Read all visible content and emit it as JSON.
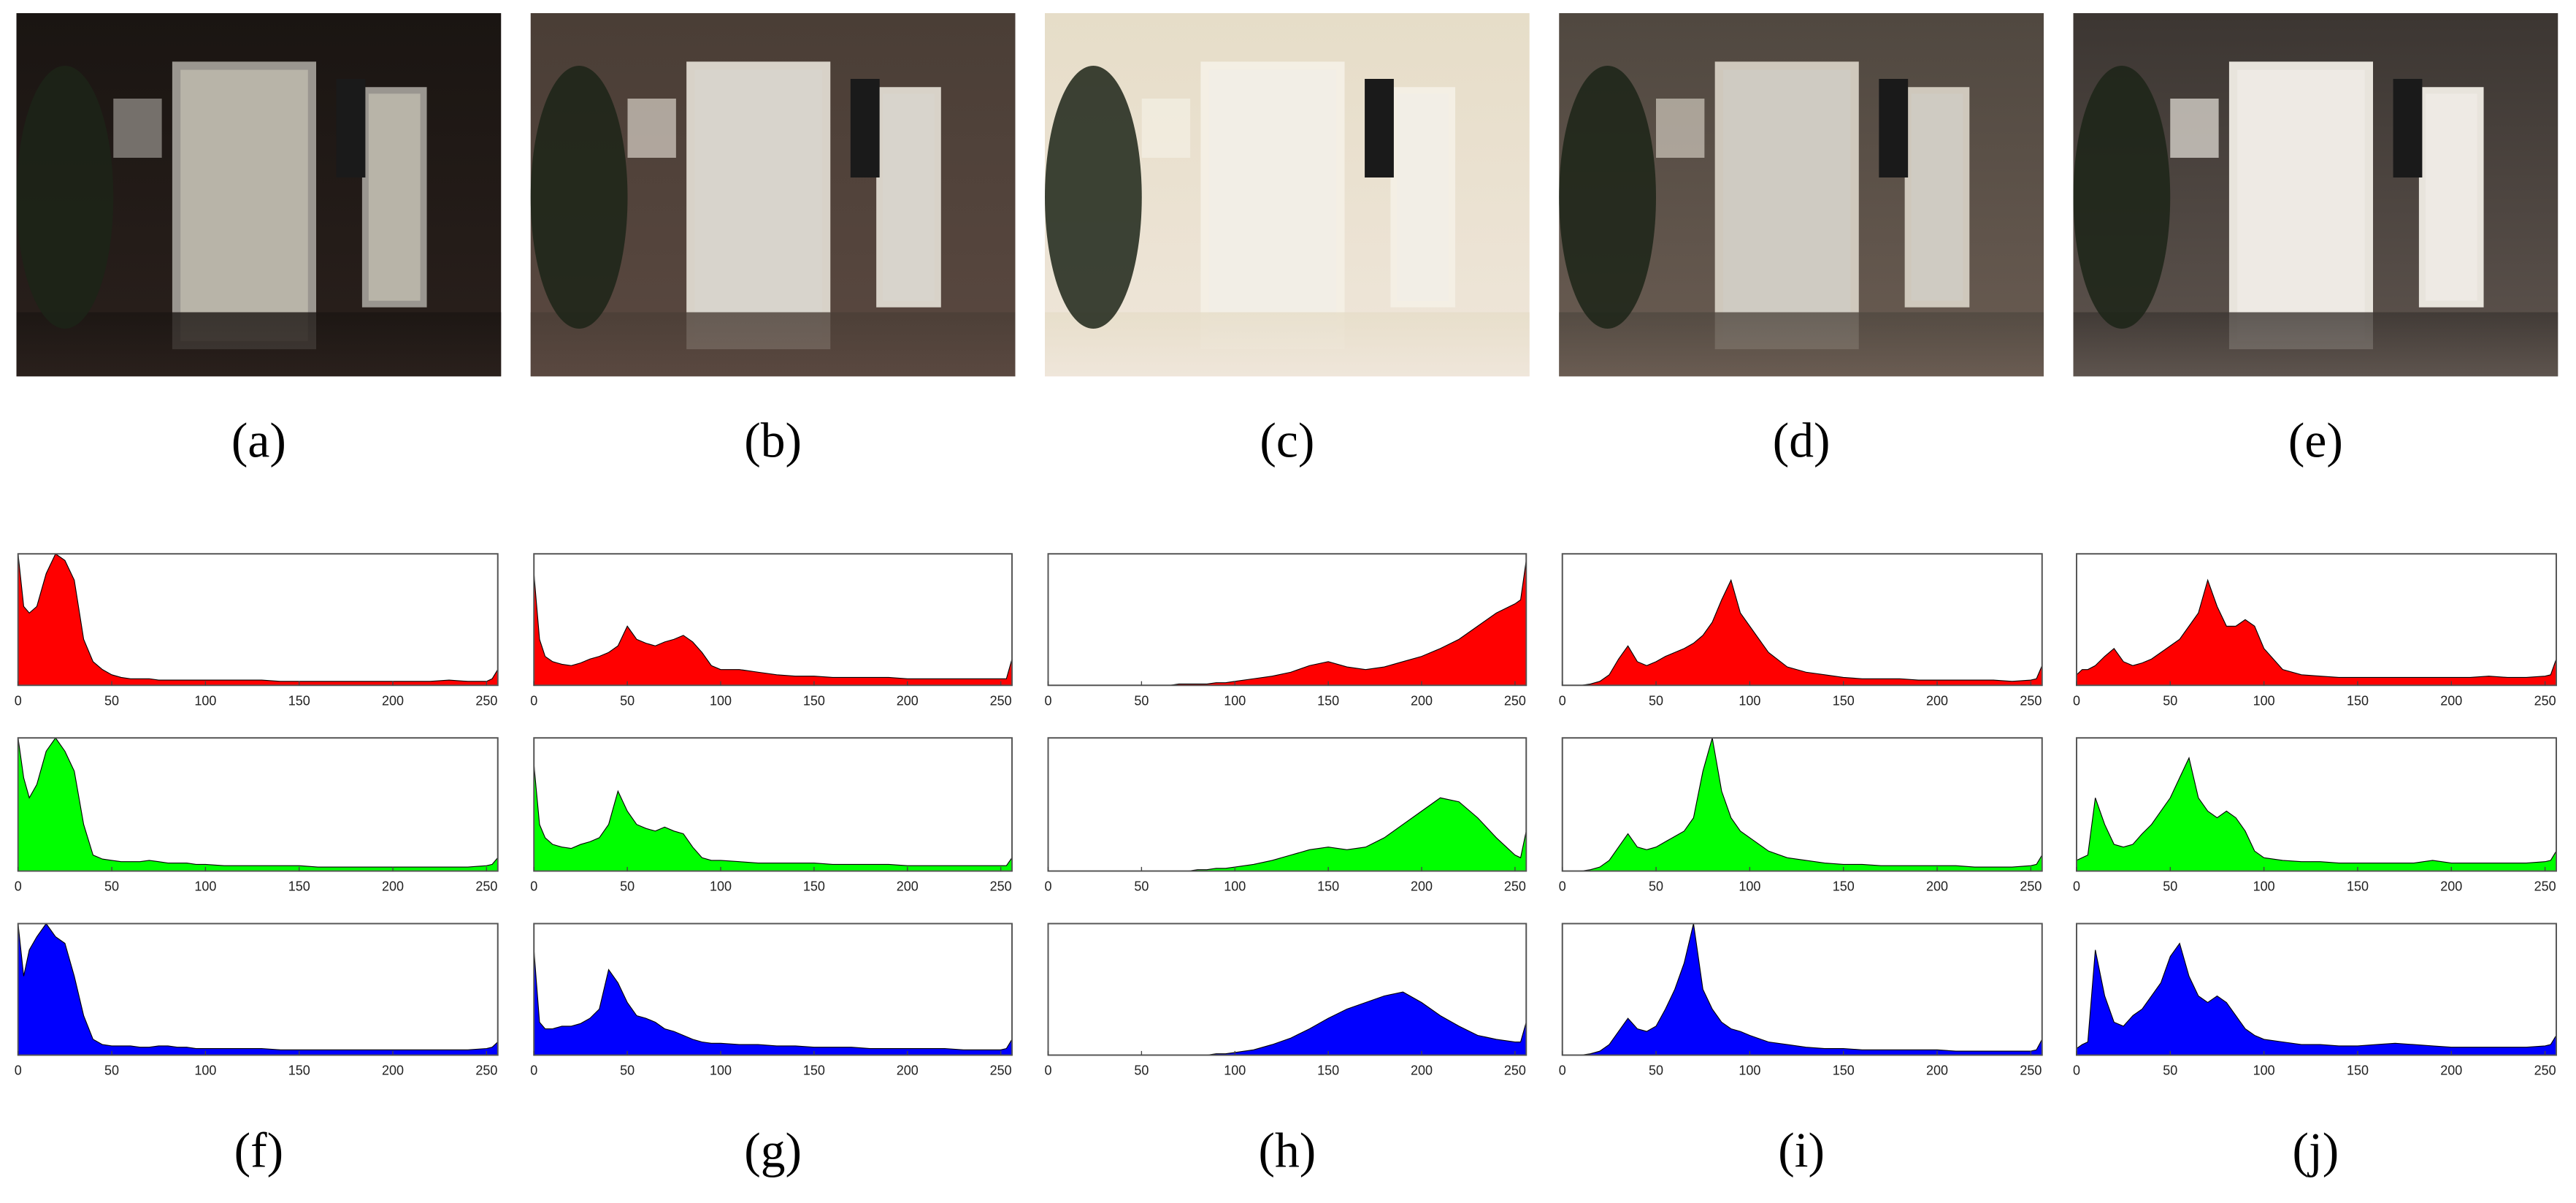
{
  "image_labels": [
    "(a)",
    "(b)",
    "(c)",
    "(d)",
    "(e)"
  ],
  "histogram_labels": [
    "(f)",
    "(g)",
    "(h)",
    "(i)",
    "(j)"
  ],
  "chart_data": [
    {
      "type": "area",
      "color": "#ff0000",
      "xlim": [
        0,
        256
      ],
      "ylim": [
        0,
        100
      ],
      "xticks": [
        0,
        50,
        100,
        150,
        200,
        250
      ],
      "x": [
        0,
        3,
        6,
        10,
        15,
        20,
        25,
        30,
        35,
        40,
        45,
        50,
        55,
        60,
        65,
        70,
        75,
        80,
        85,
        90,
        95,
        100,
        110,
        120,
        130,
        140,
        150,
        160,
        170,
        180,
        190,
        200,
        210,
        220,
        230,
        240,
        250,
        253,
        256
      ],
      "values": [
        100,
        60,
        55,
        60,
        85,
        100,
        95,
        80,
        35,
        18,
        12,
        8,
        6,
        5,
        5,
        5,
        4,
        4,
        4,
        4,
        4,
        4,
        4,
        4,
        4,
        3,
        3,
        3,
        3,
        3,
        3,
        3,
        3,
        3,
        4,
        3,
        3,
        5,
        12
      ]
    },
    {
      "type": "area",
      "color": "#00ff00",
      "xlim": [
        0,
        256
      ],
      "ylim": [
        0,
        100
      ],
      "xticks": [
        0,
        50,
        100,
        150,
        200,
        250
      ],
      "x": [
        0,
        3,
        6,
        10,
        15,
        20,
        25,
        30,
        35,
        40,
        45,
        50,
        55,
        60,
        65,
        70,
        75,
        80,
        85,
        90,
        95,
        100,
        110,
        120,
        130,
        140,
        150,
        160,
        170,
        180,
        190,
        200,
        210,
        220,
        230,
        240,
        250,
        253,
        256
      ],
      "values": [
        100,
        70,
        55,
        65,
        90,
        100,
        90,
        75,
        35,
        12,
        9,
        8,
        7,
        7,
        7,
        8,
        7,
        6,
        6,
        6,
        5,
        5,
        4,
        4,
        4,
        4,
        4,
        3,
        3,
        3,
        3,
        3,
        3,
        3,
        3,
        3,
        4,
        5,
        10
      ]
    },
    {
      "type": "area",
      "color": "#0000ff",
      "xlim": [
        0,
        256
      ],
      "ylim": [
        0,
        100
      ],
      "xticks": [
        0,
        50,
        100,
        150,
        200,
        250
      ],
      "x": [
        0,
        3,
        6,
        10,
        15,
        20,
        25,
        30,
        35,
        40,
        45,
        50,
        55,
        60,
        65,
        70,
        75,
        80,
        85,
        90,
        95,
        100,
        110,
        120,
        130,
        140,
        150,
        160,
        170,
        180,
        190,
        200,
        210,
        220,
        230,
        240,
        250,
        253,
        256
      ],
      "values": [
        100,
        60,
        80,
        90,
        100,
        90,
        85,
        60,
        30,
        12,
        8,
        7,
        7,
        7,
        6,
        6,
        7,
        7,
        6,
        6,
        5,
        5,
        5,
        5,
        5,
        4,
        4,
        4,
        4,
        4,
        4,
        4,
        4,
        4,
        4,
        4,
        5,
        6,
        10
      ]
    },
    {
      "type": "area",
      "color": "#ff0000",
      "xlim": [
        0,
        256
      ],
      "ylim": [
        0,
        100
      ],
      "xticks": [
        0,
        50,
        100,
        150,
        200,
        250
      ],
      "x": [
        0,
        3,
        6,
        10,
        15,
        20,
        25,
        30,
        35,
        40,
        45,
        50,
        55,
        60,
        65,
        70,
        75,
        80,
        85,
        90,
        95,
        100,
        110,
        120,
        130,
        140,
        150,
        160,
        170,
        180,
        190,
        200,
        210,
        220,
        230,
        240,
        250,
        253,
        256
      ],
      "values": [
        85,
        35,
        22,
        18,
        16,
        15,
        17,
        20,
        22,
        25,
        30,
        45,
        35,
        32,
        30,
        33,
        35,
        38,
        33,
        25,
        15,
        12,
        12,
        10,
        8,
        7,
        7,
        6,
        6,
        6,
        6,
        5,
        5,
        5,
        5,
        5,
        5,
        5,
        20
      ]
    },
    {
      "type": "area",
      "color": "#00ff00",
      "xlim": [
        0,
        256
      ],
      "ylim": [
        0,
        100
      ],
      "xticks": [
        0,
        50,
        100,
        150,
        200,
        250
      ],
      "x": [
        0,
        3,
        6,
        10,
        15,
        20,
        25,
        30,
        35,
        40,
        45,
        50,
        55,
        60,
        65,
        70,
        75,
        80,
        85,
        90,
        95,
        100,
        110,
        120,
        130,
        140,
        150,
        160,
        170,
        180,
        190,
        200,
        210,
        220,
        230,
        240,
        250,
        253,
        256
      ],
      "values": [
        80,
        35,
        25,
        20,
        18,
        17,
        20,
        22,
        25,
        35,
        60,
        45,
        35,
        32,
        30,
        33,
        30,
        28,
        18,
        10,
        8,
        8,
        7,
        6,
        6,
        6,
        6,
        5,
        5,
        5,
        5,
        4,
        4,
        4,
        4,
        4,
        4,
        4,
        10
      ]
    },
    {
      "type": "area",
      "color": "#0000ff",
      "xlim": [
        0,
        256
      ],
      "ylim": [
        0,
        100
      ],
      "xticks": [
        0,
        50,
        100,
        150,
        200,
        250
      ],
      "x": [
        0,
        3,
        6,
        10,
        15,
        20,
        25,
        30,
        35,
        40,
        45,
        50,
        55,
        60,
        65,
        70,
        75,
        80,
        85,
        90,
        95,
        100,
        110,
        120,
        130,
        140,
        150,
        160,
        170,
        180,
        190,
        200,
        210,
        220,
        230,
        240,
        250,
        253,
        256
      ],
      "values": [
        80,
        25,
        20,
        20,
        22,
        22,
        24,
        28,
        35,
        65,
        55,
        40,
        30,
        28,
        25,
        20,
        18,
        15,
        12,
        10,
        9,
        9,
        8,
        8,
        7,
        7,
        6,
        6,
        6,
        5,
        5,
        5,
        5,
        5,
        4,
        4,
        4,
        5,
        12
      ]
    },
    {
      "type": "area",
      "color": "#ff0000",
      "xlim": [
        0,
        256
      ],
      "ylim": [
        0,
        100
      ],
      "xticks": [
        0,
        50,
        100,
        150,
        200,
        250
      ],
      "x": [
        0,
        3,
        6,
        10,
        15,
        20,
        25,
        30,
        35,
        40,
        45,
        50,
        55,
        60,
        65,
        70,
        75,
        80,
        85,
        90,
        95,
        100,
        110,
        120,
        130,
        140,
        150,
        160,
        170,
        180,
        190,
        200,
        210,
        220,
        230,
        240,
        250,
        253,
        256
      ],
      "values": [
        0,
        0,
        0,
        0,
        0,
        0,
        0,
        0,
        0,
        0,
        0,
        0,
        0,
        0,
        0,
        1,
        1,
        1,
        1,
        2,
        2,
        3,
        5,
        7,
        10,
        15,
        18,
        14,
        12,
        14,
        18,
        22,
        28,
        35,
        45,
        55,
        62,
        65,
        95
      ]
    },
    {
      "type": "area",
      "color": "#00ff00",
      "xlim": [
        0,
        256
      ],
      "ylim": [
        0,
        100
      ],
      "xticks": [
        0,
        50,
        100,
        150,
        200,
        250
      ],
      "x": [
        0,
        3,
        6,
        10,
        15,
        20,
        25,
        30,
        35,
        40,
        45,
        50,
        55,
        60,
        65,
        70,
        75,
        80,
        85,
        90,
        95,
        100,
        110,
        120,
        130,
        140,
        150,
        160,
        170,
        180,
        190,
        200,
        210,
        220,
        230,
        240,
        250,
        253,
        256
      ],
      "values": [
        0,
        0,
        0,
        0,
        0,
        0,
        0,
        0,
        0,
        0,
        0,
        0,
        0,
        0,
        0,
        0,
        0,
        1,
        1,
        2,
        2,
        3,
        5,
        8,
        12,
        16,
        18,
        16,
        18,
        25,
        35,
        45,
        55,
        52,
        40,
        25,
        12,
        10,
        30
      ]
    },
    {
      "type": "area",
      "color": "#0000ff",
      "xlim": [
        0,
        256
      ],
      "ylim": [
        0,
        100
      ],
      "xticks": [
        0,
        50,
        100,
        150,
        200,
        250
      ],
      "x": [
        0,
        3,
        6,
        10,
        15,
        20,
        25,
        30,
        35,
        40,
        45,
        50,
        55,
        60,
        65,
        70,
        75,
        80,
        85,
        90,
        95,
        100,
        110,
        120,
        130,
        140,
        150,
        160,
        170,
        180,
        190,
        200,
        210,
        220,
        230,
        240,
        250,
        253,
        256
      ],
      "values": [
        0,
        0,
        0,
        0,
        0,
        0,
        0,
        0,
        0,
        0,
        0,
        0,
        0,
        0,
        0,
        0,
        0,
        0,
        0,
        1,
        1,
        2,
        4,
        8,
        13,
        20,
        28,
        35,
        40,
        45,
        48,
        40,
        30,
        22,
        15,
        12,
        10,
        10,
        25
      ]
    },
    {
      "type": "area",
      "color": "#ff0000",
      "xlim": [
        0,
        256
      ],
      "ylim": [
        0,
        100
      ],
      "xticks": [
        0,
        50,
        100,
        150,
        200,
        250
      ],
      "x": [
        0,
        3,
        6,
        10,
        15,
        20,
        25,
        30,
        35,
        40,
        45,
        50,
        55,
        60,
        65,
        70,
        75,
        80,
        85,
        90,
        95,
        100,
        110,
        120,
        130,
        140,
        150,
        160,
        170,
        180,
        190,
        200,
        210,
        220,
        230,
        240,
        250,
        253,
        256
      ],
      "values": [
        0,
        0,
        0,
        0,
        1,
        3,
        8,
        20,
        30,
        18,
        15,
        18,
        22,
        25,
        28,
        32,
        38,
        48,
        65,
        80,
        55,
        45,
        25,
        14,
        10,
        8,
        6,
        5,
        5,
        5,
        4,
        4,
        4,
        4,
        4,
        3,
        4,
        5,
        15
      ]
    },
    {
      "type": "area",
      "color": "#00ff00",
      "xlim": [
        0,
        256
      ],
      "ylim": [
        0,
        100
      ],
      "xticks": [
        0,
        50,
        100,
        150,
        200,
        250
      ],
      "x": [
        0,
        3,
        6,
        10,
        15,
        20,
        25,
        30,
        35,
        40,
        45,
        50,
        55,
        60,
        65,
        70,
        75,
        80,
        85,
        90,
        95,
        100,
        110,
        120,
        130,
        140,
        150,
        160,
        170,
        180,
        190,
        200,
        210,
        220,
        230,
        240,
        250,
        253,
        256
      ],
      "values": [
        0,
        0,
        0,
        0,
        1,
        3,
        8,
        18,
        28,
        18,
        16,
        18,
        22,
        26,
        30,
        40,
        75,
        100,
        60,
        40,
        30,
        25,
        15,
        10,
        8,
        6,
        5,
        5,
        4,
        4,
        4,
        4,
        4,
        3,
        3,
        3,
        4,
        5,
        12
      ]
    },
    {
      "type": "area",
      "color": "#0000ff",
      "xlim": [
        0,
        256
      ],
      "ylim": [
        0,
        100
      ],
      "xticks": [
        0,
        50,
        100,
        150,
        200,
        250
      ],
      "x": [
        0,
        3,
        6,
        10,
        15,
        20,
        25,
        30,
        35,
        40,
        45,
        50,
        55,
        60,
        65,
        70,
        75,
        80,
        85,
        90,
        95,
        100,
        110,
        120,
        130,
        140,
        150,
        160,
        170,
        180,
        190,
        200,
        210,
        220,
        230,
        240,
        250,
        253,
        256
      ],
      "values": [
        0,
        0,
        0,
        0,
        1,
        3,
        8,
        18,
        28,
        20,
        18,
        22,
        35,
        50,
        70,
        100,
        50,
        35,
        25,
        20,
        18,
        15,
        10,
        8,
        6,
        5,
        5,
        4,
        4,
        4,
        4,
        4,
        3,
        3,
        3,
        3,
        3,
        4,
        12
      ]
    },
    {
      "type": "area",
      "color": "#ff0000",
      "xlim": [
        0,
        256
      ],
      "ylim": [
        0,
        100
      ],
      "xticks": [
        0,
        50,
        100,
        150,
        200,
        250
      ],
      "x": [
        0,
        3,
        6,
        10,
        15,
        20,
        25,
        30,
        35,
        40,
        45,
        50,
        55,
        60,
        65,
        70,
        75,
        80,
        85,
        90,
        95,
        100,
        110,
        120,
        130,
        140,
        150,
        160,
        170,
        180,
        190,
        200,
        210,
        220,
        230,
        240,
        250,
        253,
        256
      ],
      "values": [
        8,
        12,
        12,
        15,
        22,
        28,
        18,
        15,
        17,
        20,
        25,
        30,
        35,
        45,
        55,
        80,
        60,
        45,
        45,
        50,
        45,
        28,
        12,
        8,
        7,
        6,
        6,
        6,
        6,
        6,
        6,
        6,
        6,
        7,
        6,
        6,
        7,
        8,
        20
      ]
    },
    {
      "type": "area",
      "color": "#00ff00",
      "xlim": [
        0,
        256
      ],
      "ylim": [
        0,
        100
      ],
      "xticks": [
        0,
        50,
        100,
        150,
        200,
        250
      ],
      "x": [
        0,
        3,
        6,
        10,
        15,
        20,
        25,
        30,
        35,
        40,
        45,
        50,
        55,
        60,
        65,
        70,
        75,
        80,
        85,
        90,
        95,
        100,
        110,
        120,
        130,
        140,
        150,
        160,
        170,
        180,
        190,
        200,
        210,
        220,
        230,
        240,
        250,
        253,
        256
      ],
      "values": [
        8,
        10,
        12,
        55,
        35,
        20,
        18,
        20,
        28,
        35,
        45,
        55,
        70,
        85,
        55,
        45,
        40,
        45,
        40,
        30,
        15,
        10,
        8,
        7,
        7,
        6,
        6,
        6,
        6,
        6,
        8,
        6,
        6,
        6,
        6,
        6,
        7,
        8,
        15
      ]
    },
    {
      "type": "area",
      "color": "#0000ff",
      "xlim": [
        0,
        256
      ],
      "ylim": [
        0,
        100
      ],
      "xticks": [
        0,
        50,
        100,
        150,
        200,
        250
      ],
      "x": [
        0,
        3,
        6,
        10,
        15,
        20,
        25,
        30,
        35,
        40,
        45,
        50,
        55,
        60,
        65,
        70,
        75,
        80,
        85,
        90,
        95,
        100,
        110,
        120,
        130,
        140,
        150,
        160,
        170,
        180,
        190,
        200,
        210,
        220,
        230,
        240,
        250,
        253,
        256
      ],
      "values": [
        5,
        8,
        10,
        80,
        45,
        25,
        22,
        30,
        35,
        45,
        55,
        75,
        85,
        60,
        45,
        40,
        45,
        40,
        30,
        20,
        15,
        12,
        10,
        8,
        8,
        7,
        7,
        8,
        9,
        8,
        7,
        6,
        6,
        6,
        6,
        6,
        7,
        8,
        15
      ]
    }
  ]
}
